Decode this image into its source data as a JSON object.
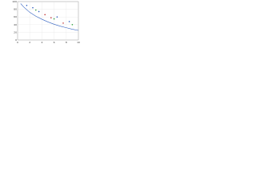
{
  "chart_data": {
    "type": "scatter",
    "xlim": [
      0,
      10
    ],
    "xticks": [
      0,
      2,
      4,
      6,
      8,
      10
    ],
    "ylim": [
      0,
      100
    ],
    "yticks": [
      0,
      20,
      40,
      60,
      80,
      100
    ],
    "grid": true,
    "series": [
      {
        "color": "#3060c0",
        "kind": "line",
        "x": [
          0.5,
          1,
          2,
          3,
          4,
          5,
          6,
          7,
          8,
          9,
          10
        ],
        "values": [
          95,
          86,
          72,
          62,
          54,
          47,
          41,
          36,
          32,
          28,
          25
        ]
      },
      {
        "color": "#3060c0",
        "kind": "points",
        "x": [
          1.5,
          2.5,
          3.5,
          6.5,
          8.5
        ],
        "values": [
          90,
          84,
          74,
          60,
          48
        ]
      },
      {
        "color": "#c03030",
        "kind": "points",
        "x": [
          4.5,
          5.5,
          7.5
        ],
        "values": [
          66,
          58,
          44
        ]
      },
      {
        "color": "#30a040",
        "kind": "points",
        "x": [
          3,
          6,
          9
        ],
        "values": [
          78,
          55,
          40
        ]
      }
    ]
  }
}
